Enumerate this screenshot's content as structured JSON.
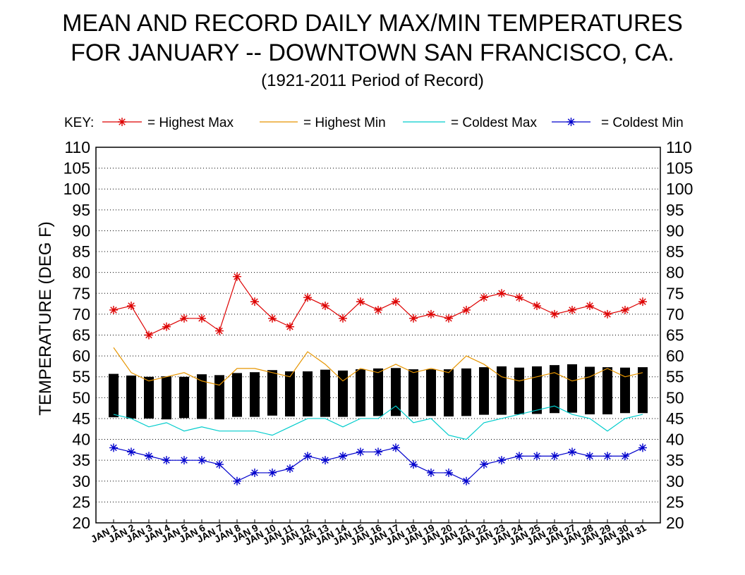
{
  "chart_data": {
    "type": "line",
    "title": "MEAN AND RECORD DAILY MAX/MIN TEMPERATURES",
    "subtitle": "FOR JANUARY -- DOWNTOWN SAN FRANCISCO, CA.",
    "period": "(1921-2011 Period of Record)",
    "key_label": "KEY:",
    "ylabel": "TEMPERATURE (DEG F)",
    "xlabel": "",
    "ylim": [
      20,
      110
    ],
    "yticks": [
      20,
      25,
      30,
      35,
      40,
      45,
      50,
      55,
      60,
      65,
      70,
      75,
      80,
      85,
      90,
      95,
      100,
      105,
      110
    ],
    "grid": "horizontal dotted",
    "legend_position": "top",
    "categories": [
      "JAN 1",
      "JAN 2",
      "JAN 3",
      "JAN 4",
      "JAN 5",
      "JAN 6",
      "JAN 7",
      "JAN 8",
      "JAN 9",
      "JAN 10",
      "JAN 11",
      "JAN 12",
      "JAN 13",
      "JAN 14",
      "JAN 15",
      "JAN 16",
      "JAN 17",
      "JAN 18",
      "JAN 19",
      "JAN 20",
      "JAN 21",
      "JAN 22",
      "JAN 23",
      "JAN 24",
      "JAN 25",
      "JAN 26",
      "JAN 27",
      "JAN 28",
      "JAN 29",
      "JAN 30",
      "JAN 31"
    ],
    "series": [
      {
        "name": "= Highest Max",
        "color": "#dd0000",
        "marker": "star",
        "values": [
          71,
          72,
          65,
          67,
          69,
          69,
          66,
          79,
          73,
          69,
          67,
          74,
          72,
          69,
          73,
          71,
          73,
          69,
          70,
          69,
          71,
          74,
          75,
          74,
          72,
          70,
          71,
          72,
          70,
          71,
          73
        ]
      },
      {
        "name": "= Highest Min",
        "color": "#e69500",
        "marker": "none",
        "values": [
          62,
          56,
          54,
          55,
          56,
          54,
          53,
          57,
          57,
          56,
          55,
          61,
          58,
          54,
          57,
          56,
          58,
          56,
          57,
          56,
          60,
          58,
          55,
          54,
          55,
          56,
          54,
          55,
          57,
          55,
          56
        ]
      },
      {
        "name": "= Coldest Max",
        "color": "#00cccc",
        "marker": "none",
        "values": [
          46,
          45,
          43,
          44,
          42,
          43,
          42,
          42,
          42,
          41,
          43,
          45,
          45,
          43,
          45,
          45,
          48,
          44,
          45,
          41,
          40,
          44,
          45,
          46,
          47,
          48,
          46,
          45,
          42,
          45,
          46
        ]
      },
      {
        "name": "= Coldest Min",
        "color": "#0000cc",
        "marker": "star",
        "values": [
          38,
          37,
          36,
          35,
          35,
          35,
          34,
          30,
          32,
          32,
          33,
          36,
          35,
          36,
          37,
          37,
          38,
          34,
          32,
          32,
          30,
          34,
          35,
          36,
          36,
          36,
          37,
          36,
          36,
          36,
          38
        ]
      }
    ],
    "mean_bars": {
      "name": "Mean Max / Mean Min",
      "color": "#000000",
      "mean_max": [
        55.7,
        55.3,
        55.0,
        55.1,
        55.0,
        55.6,
        55.4,
        55.9,
        56.1,
        56.6,
        56.3,
        56.3,
        56.7,
        56.5,
        56.8,
        57.0,
        57.1,
        56.8,
        56.8,
        56.8,
        57.0,
        57.3,
        57.5,
        57.2,
        57.5,
        57.8,
        58.0,
        57.4,
        57.3,
        57.2,
        57.3
      ],
      "mean_min": [
        45.3,
        45.0,
        45.0,
        44.8,
        45.1,
        44.9,
        44.8,
        45.4,
        45.4,
        45.7,
        45.5,
        45.5,
        45.4,
        45.4,
        45.5,
        45.6,
        45.6,
        45.5,
        45.6,
        45.5,
        45.6,
        45.9,
        45.9,
        46.0,
        46.1,
        46.3,
        46.4,
        46.0,
        46.0,
        46.3,
        46.3
      ]
    }
  }
}
